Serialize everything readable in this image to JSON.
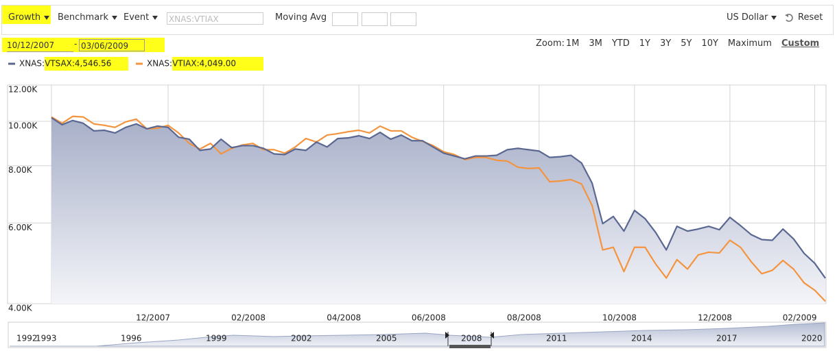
{
  "ui": {
    "toolbar": {
      "growth": "Growth",
      "benchmark": "Benchmark",
      "event": "Event",
      "ticker_input": "XNAS:VTIAX",
      "moving_avg": "Moving Avg",
      "currency": "US Dollar",
      "reset": "Reset"
    },
    "date_range": {
      "start": "10/12/2007",
      "separator": "-",
      "end": "03/06/2009"
    },
    "zoom": {
      "label": "Zoom:",
      "options": [
        "1M",
        "3M",
        "YTD",
        "1Y",
        "3Y",
        "5Y",
        "10Y",
        "Maximum",
        "Custom"
      ],
      "active": "Custom"
    },
    "navigator": {
      "labels": [
        "1992",
        "1993",
        "1996",
        "1999",
        "2002",
        "2005",
        "2008",
        "2011",
        "2014",
        "2017",
        "2020"
      ]
    }
  },
  "chart_data": {
    "type": "line",
    "yscale": "log",
    "grid": true,
    "legend_position": "top-left",
    "ylim": [
      4000,
      12000
    ],
    "yticks": [
      {
        "value": 4000,
        "label": "4.00K"
      },
      {
        "value": 6000,
        "label": "6.00K"
      },
      {
        "value": 8000,
        "label": "8.00K"
      },
      {
        "value": 10000,
        "label": "10.00K"
      },
      {
        "value": 12000,
        "label": "12.00K"
      }
    ],
    "categories": [
      null,
      null,
      null,
      null,
      null,
      null,
      null,
      null,
      null,
      null,
      null,
      "12/2007",
      null,
      null,
      null,
      null,
      null,
      null,
      null,
      null,
      "02/2008",
      null,
      null,
      null,
      null,
      null,
      null,
      null,
      null,
      "04/2008",
      null,
      null,
      null,
      null,
      null,
      null,
      null,
      "06/2008",
      null,
      null,
      null,
      null,
      null,
      null,
      null,
      null,
      "08/2008",
      null,
      null,
      null,
      null,
      null,
      null,
      null,
      null,
      "10/2008",
      null,
      null,
      null,
      null,
      null,
      null,
      null,
      null,
      "12/2008",
      null,
      null,
      null,
      null,
      null,
      null,
      null,
      "02/2009",
      null
    ],
    "series": [
      {
        "name": "XNAS:VTSAX:4,546.56",
        "color": "#5a6791",
        "area": true,
        "values": [
          10180,
          9830,
          10040,
          9900,
          9530,
          9560,
          9430,
          9700,
          9870,
          9630,
          9760,
          9700,
          9230,
          9140,
          8640,
          8700,
          9140,
          8760,
          8850,
          8850,
          8730,
          8490,
          8460,
          8700,
          8640,
          9010,
          8790,
          9170,
          9200,
          9300,
          9170,
          9460,
          9140,
          9330,
          9070,
          9070,
          8790,
          8520,
          8400,
          8280,
          8400,
          8400,
          8430,
          8670,
          8730,
          8670,
          8610,
          8340,
          8370,
          8430,
          8110,
          7330,
          5980,
          6200,
          5760,
          6390,
          6130,
          5720,
          5240,
          5900,
          5760,
          5820,
          5900,
          5800,
          6170,
          5920,
          5660,
          5520,
          5500,
          5820,
          5540,
          5150,
          4900,
          4546.56
        ]
      },
      {
        "name": "XNAS:VTIAX:4,049.00",
        "color": "#f4943f",
        "area": false,
        "values": [
          10220,
          9900,
          10250,
          10220,
          9870,
          9800,
          9700,
          9970,
          10110,
          9630,
          9660,
          9800,
          9430,
          8950,
          8700,
          8950,
          8490,
          8730,
          8880,
          8950,
          8670,
          8670,
          8520,
          8790,
          9170,
          9010,
          9330,
          9400,
          9490,
          9560,
          9430,
          9760,
          9530,
          9530,
          9230,
          9040,
          8850,
          8580,
          8460,
          8250,
          8340,
          8340,
          8220,
          8190,
          7940,
          7890,
          7910,
          7380,
          7410,
          7460,
          7300,
          6550,
          5240,
          5310,
          4700,
          5310,
          5310,
          4880,
          4550,
          4990,
          4760,
          5110,
          5180,
          5160,
          5500,
          5310,
          4940,
          4650,
          4730,
          4970,
          4760,
          4440,
          4280,
          4049
        ]
      }
    ]
  }
}
